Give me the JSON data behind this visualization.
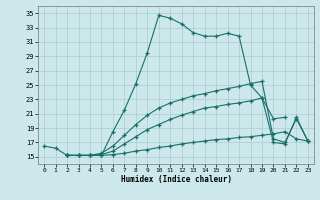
{
  "xlabel": "Humidex (Indice chaleur)",
  "background_color": "#cce8ea",
  "grid_color": "#aacccc",
  "line_color": "#1a6e6a",
  "xlim": [
    -0.5,
    23.5
  ],
  "ylim": [
    14,
    36
  ],
  "xticks": [
    0,
    1,
    2,
    3,
    4,
    5,
    6,
    7,
    8,
    9,
    10,
    11,
    12,
    13,
    14,
    15,
    16,
    17,
    18,
    19,
    20,
    21,
    22,
    23
  ],
  "yticks": [
    15,
    17,
    19,
    21,
    23,
    25,
    27,
    29,
    31,
    33,
    35
  ],
  "lines": [
    {
      "x": [
        0,
        1,
        2,
        3,
        4,
        5,
        6,
        7,
        8,
        9,
        10,
        11,
        12,
        13,
        14,
        15,
        16,
        17,
        18,
        19,
        20,
        21
      ],
      "y": [
        16.5,
        16.2,
        15.2,
        15.2,
        15.2,
        15.2,
        18.5,
        21.5,
        25.2,
        29.5,
        34.7,
        34.3,
        33.5,
        32.3,
        31.8,
        31.8,
        32.2,
        31.8,
        25.0,
        23.2,
        20.3,
        20.5
      ]
    },
    {
      "x": [
        2,
        3,
        4,
        5,
        6,
        7,
        8,
        9,
        10,
        11,
        12,
        13,
        14,
        15,
        16,
        17,
        18,
        19,
        20,
        21,
        22,
        23
      ],
      "y": [
        15.2,
        15.2,
        15.2,
        15.5,
        16.5,
        18.0,
        19.5,
        20.8,
        21.8,
        22.5,
        23.0,
        23.5,
        23.8,
        24.2,
        24.5,
        24.8,
        25.2,
        25.5,
        17.5,
        17.0,
        20.3,
        17.2
      ]
    },
    {
      "x": [
        2,
        3,
        4,
        5,
        6,
        7,
        8,
        9,
        10,
        11,
        12,
        13,
        14,
        15,
        16,
        17,
        18,
        19,
        20,
        21,
        22,
        23
      ],
      "y": [
        15.2,
        15.2,
        15.2,
        15.3,
        15.8,
        16.8,
        17.8,
        18.8,
        19.5,
        20.2,
        20.8,
        21.3,
        21.8,
        22.0,
        22.3,
        22.5,
        22.8,
        23.2,
        17.0,
        16.8,
        20.5,
        17.2
      ]
    },
    {
      "x": [
        2,
        3,
        4,
        5,
        6,
        7,
        8,
        9,
        10,
        11,
        12,
        13,
        14,
        15,
        16,
        17,
        18,
        19,
        20,
        21,
        22,
        23
      ],
      "y": [
        15.2,
        15.2,
        15.2,
        15.2,
        15.3,
        15.5,
        15.8,
        16.0,
        16.3,
        16.5,
        16.8,
        17.0,
        17.2,
        17.4,
        17.5,
        17.7,
        17.8,
        18.0,
        18.2,
        18.5,
        17.5,
        17.2
      ]
    }
  ]
}
